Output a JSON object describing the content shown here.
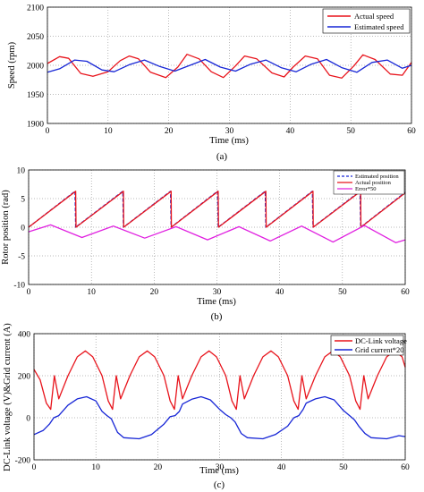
{
  "figure": {
    "panels": [
      {
        "label": "(a)"
      },
      {
        "label": "(b)"
      },
      {
        "label": "(c)"
      }
    ]
  },
  "chart_data": [
    {
      "type": "line",
      "panel": "(a)",
      "title": "",
      "xlabel": "Time (ms)",
      "ylabel": "Speed (rpm)",
      "xlim": [
        0,
        60
      ],
      "ylim": [
        1900,
        2100
      ],
      "xticks": [
        "0",
        "10",
        "20",
        "30",
        "40",
        "50",
        "60"
      ],
      "yticks": [
        "1900",
        "1950",
        "2000",
        "2050",
        "2100"
      ],
      "grid": true,
      "legend": "top-right",
      "series": [
        {
          "name": "Actual speed",
          "color": "#e8141c",
          "x": [
            0,
            2,
            3.5,
            5.5,
            7.5,
            10,
            12,
            13.5,
            15,
            17,
            19.5,
            21.5,
            23,
            25,
            27,
            29,
            31,
            32.5,
            34.5,
            37,
            39,
            40.5,
            42.5,
            44.5,
            46.5,
            48.5,
            50.5,
            52,
            54,
            56.5,
            58.5,
            60
          ],
          "y": [
            2003,
            2015,
            2012,
            1986,
            1981,
            1989,
            2008,
            2016,
            2011,
            1988,
            1979,
            1997,
            2019,
            2011,
            1989,
            1979,
            1999,
            2016,
            2011,
            1987,
            1980,
            1997,
            2016,
            2011,
            1983,
            1978,
            1999,
            2018,
            2010,
            1985,
            1983,
            2005
          ]
        },
        {
          "name": "Estimated speed",
          "color": "#1726d6",
          "x": [
            0,
            2,
            4.5,
            6.5,
            9,
            11,
            13.5,
            16,
            18.5,
            21,
            23.5,
            26,
            28.5,
            31,
            33.5,
            36,
            38.5,
            41,
            43.5,
            46,
            48.5,
            51,
            53.5,
            56,
            58.5,
            60
          ],
          "y": [
            1988,
            1994,
            2009,
            2007,
            1992,
            1989,
            2001,
            2009,
            1998,
            1990,
            2000,
            2010,
            1997,
            1990,
            2002,
            2009,
            1996,
            1989,
            2002,
            2010,
            1996,
            1988,
            2005,
            2009,
            1995,
            2000
          ]
        }
      ]
    },
    {
      "type": "line",
      "panel": "(b)",
      "title": "",
      "xlabel": "Time (ms)",
      "ylabel": "Rotor position (rad)",
      "xlim": [
        0,
        60
      ],
      "ylim": [
        -10,
        10
      ],
      "xticks": [
        "0",
        "10",
        "20",
        "30",
        "40",
        "50",
        "60"
      ],
      "yticks": [
        "-10",
        "-5",
        "0",
        "5",
        "10"
      ],
      "grid": true,
      "legend": "top-right",
      "series": [
        {
          "name": "Estimated position",
          "color": "#1726d6",
          "style": "dashed",
          "x": [
            0,
            7.4,
            7.5,
            15.0,
            15.1,
            22.6,
            22.7,
            30.1,
            30.2,
            37.7,
            37.8,
            45.2,
            45.3,
            52.8,
            52.9,
            60
          ],
          "y": [
            0,
            6.28,
            0,
            6.28,
            0,
            6.28,
            0,
            6.28,
            0,
            6.28,
            0,
            6.28,
            0,
            6.28,
            0,
            6.1
          ]
        },
        {
          "name": "Actual position",
          "color": "#e8141c",
          "x": [
            0,
            7.5,
            7.55,
            15.1,
            15.15,
            22.7,
            22.75,
            30.2,
            30.25,
            37.8,
            37.85,
            45.3,
            45.35,
            52.9,
            52.95,
            60
          ],
          "y": [
            0,
            6.28,
            0,
            6.28,
            0,
            6.28,
            0,
            6.28,
            0,
            6.28,
            0,
            6.28,
            0,
            6.28,
            0,
            6.0
          ]
        },
        {
          "name": "Error*50",
          "color": "#e020e0",
          "x": [
            0,
            3.5,
            8.5,
            13.5,
            18.5,
            23.5,
            28.5,
            33.5,
            38.5,
            43.5,
            48.5,
            53.5,
            58.5,
            60
          ],
          "y": [
            -0.8,
            0.4,
            -1.8,
            0.2,
            -1.9,
            0.1,
            -2.2,
            0.1,
            -2.4,
            0.2,
            -2.6,
            0.3,
            -2.7,
            -2.2
          ]
        }
      ]
    },
    {
      "type": "line",
      "panel": "(c)",
      "title": "",
      "xlabel": "Time (ms)",
      "ylabel": "DC-Link voltage (V)&Grid current (A)",
      "xlim": [
        0,
        60
      ],
      "ylim": [
        -200,
        400
      ],
      "xticks": [
        "0",
        "10",
        "20",
        "30",
        "40",
        "50",
        "60"
      ],
      "yticks": [
        "-200",
        "0",
        "200",
        "400"
      ],
      "grid": true,
      "legend": "top-right",
      "series": [
        {
          "name": "DC-Link voltage",
          "color": "#e8141c",
          "x": [
            0,
            1,
            2,
            2.7,
            3.3,
            4.0,
            5.5,
            7,
            8.3,
            9.5,
            11,
            12,
            12.7,
            13.3,
            14,
            15.5,
            17,
            18.3,
            19.5,
            21,
            22,
            22.7,
            23.3,
            24,
            25.5,
            27,
            28.3,
            29.5,
            31,
            32,
            32.7,
            33.3,
            34,
            35.5,
            37,
            38.3,
            39.5,
            41,
            42,
            42.7,
            43.3,
            44,
            45.5,
            47,
            48.3,
            49.5,
            51,
            52,
            52.7,
            53.3,
            54,
            55.5,
            57,
            58.3,
            59.5,
            60
          ],
          "y": [
            230,
            180,
            70,
            40,
            200,
            90,
            200,
            290,
            318,
            290,
            200,
            80,
            40,
            200,
            90,
            200,
            290,
            318,
            290,
            200,
            80,
            40,
            200,
            90,
            200,
            290,
            318,
            290,
            200,
            80,
            40,
            200,
            90,
            200,
            290,
            318,
            290,
            200,
            80,
            40,
            200,
            90,
            200,
            290,
            318,
            290,
            200,
            80,
            40,
            200,
            90,
            200,
            290,
            318,
            290,
            240
          ]
        },
        {
          "name": "Grid current*20",
          "color": "#1726d6",
          "x": [
            0,
            1.5,
            2.5,
            3.2,
            4,
            5.5,
            7,
            8.5,
            10,
            11,
            11.8,
            12.5,
            13.5,
            14.5,
            17,
            19,
            21,
            22,
            22.8,
            23.5,
            24,
            25.5,
            27,
            28.5,
            30,
            31,
            31.8,
            32.5,
            33.5,
            34.5,
            37,
            39,
            41,
            42,
            42.8,
            43.5,
            44,
            45.5,
            47,
            48.5,
            50,
            51,
            51.8,
            52.5,
            53.5,
            54.5,
            57,
            59,
            60
          ],
          "y": [
            -80,
            -60,
            -30,
            0,
            10,
            60,
            90,
            100,
            80,
            30,
            10,
            -5,
            -70,
            -95,
            -100,
            -80,
            -30,
            5,
            10,
            30,
            65,
            88,
            100,
            85,
            40,
            15,
            0,
            -20,
            -75,
            -95,
            -100,
            -80,
            -40,
            0,
            10,
            40,
            70,
            90,
            100,
            85,
            35,
            10,
            -10,
            -40,
            -75,
            -95,
            -100,
            -85,
            -90
          ]
        }
      ]
    }
  ]
}
